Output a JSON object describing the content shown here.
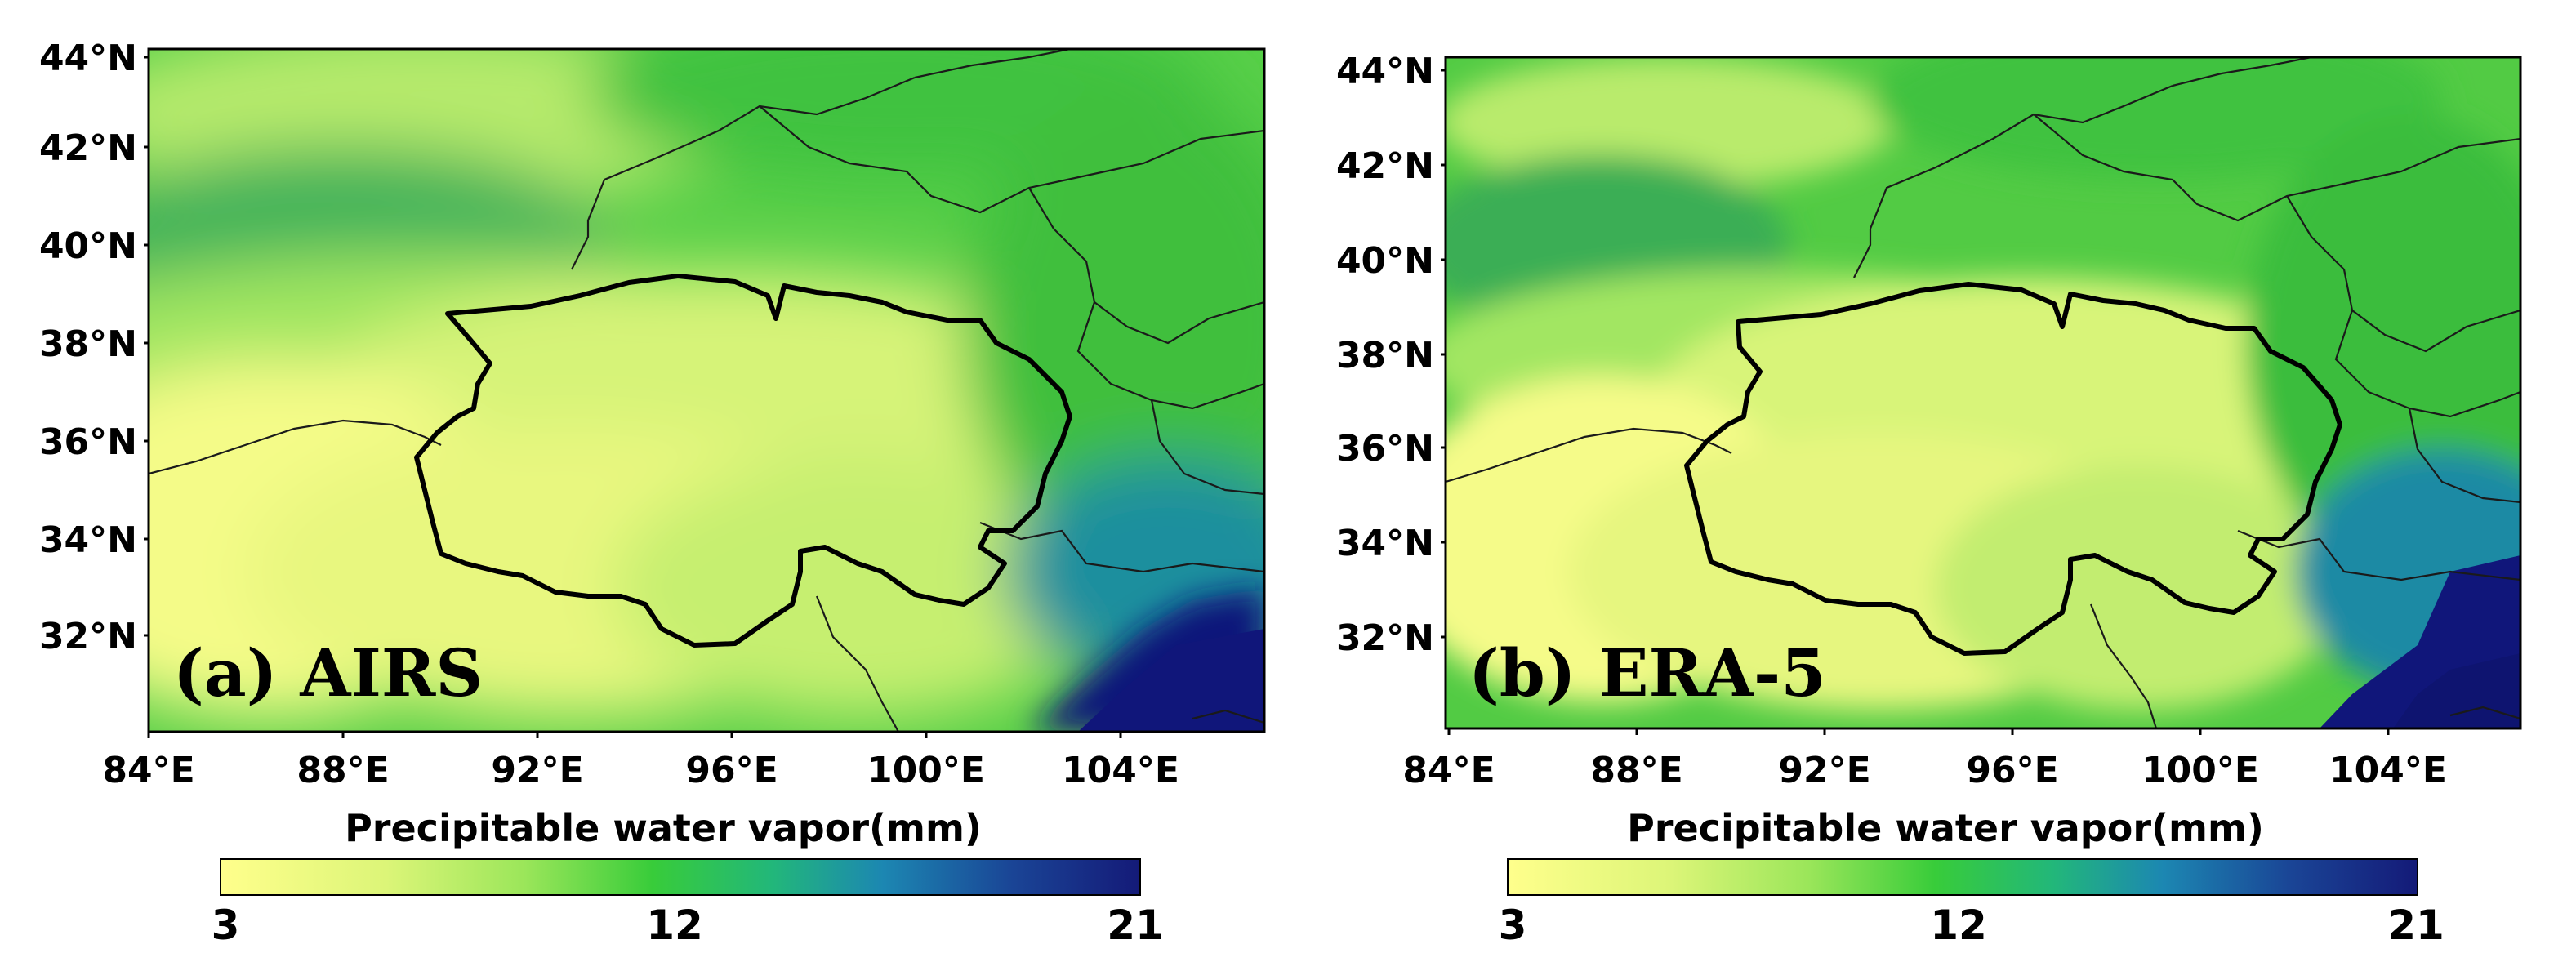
{
  "colors": {
    "scale": [
      "#ffff8c",
      "#dcf578",
      "#9be65a",
      "#4cd23c",
      "#27c43a",
      "#1fa9a0",
      "#1e5fa0",
      "#141a78"
    ],
    "deep": "#10167a"
  },
  "panels": [
    {
      "label": "(a) AIRS",
      "source": "AIRS",
      "x_ticks": [
        "84°E",
        "88°E",
        "92°E",
        "96°E",
        "100°E",
        "104°E"
      ],
      "y_ticks": [
        "44°N",
        "42°N",
        "40°N",
        "38°N",
        "36°N",
        "34°N",
        "32°N"
      ],
      "colorbar_label": "Precipitable water vapor(mm)",
      "colorbar_ticks": [
        "3",
        "12",
        "21"
      ]
    },
    {
      "label": "(b) ERA-5",
      "source": "ERA-5",
      "x_ticks": [
        "84°E",
        "88°E",
        "92°E",
        "96°E",
        "100°E",
        "104°E"
      ],
      "y_ticks": [
        "44°N",
        "42°N",
        "40°N",
        "38°N",
        "36°N",
        "34°N",
        "32°N"
      ],
      "colorbar_label": "Precipitable water vapor(mm)",
      "colorbar_ticks": [
        "3",
        "12",
        "21"
      ]
    }
  ],
  "map": {
    "lon_range": [
      84,
      107
    ],
    "lat_range": [
      30,
      44.5
    ],
    "value_range": [
      3,
      21
    ],
    "units": "mm"
  }
}
